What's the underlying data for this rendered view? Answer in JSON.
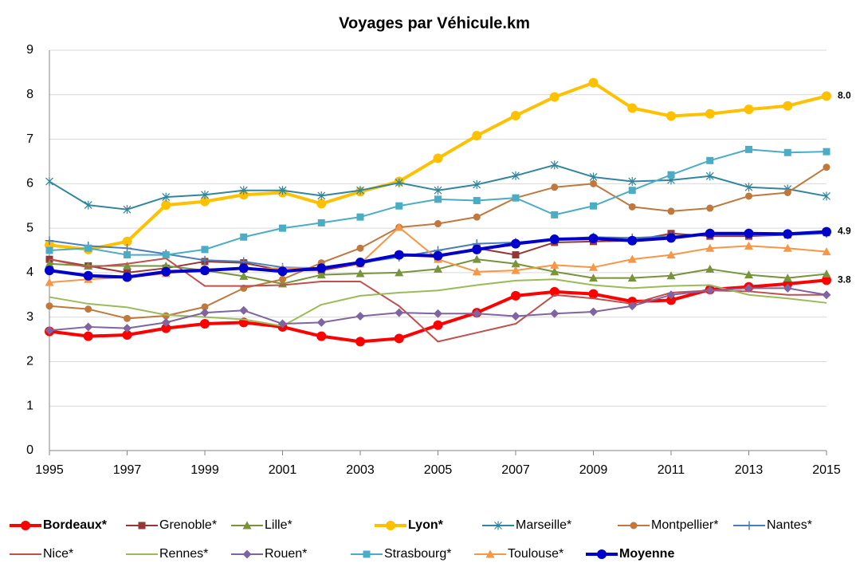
{
  "chart_data": {
    "type": "line",
    "title": "Voyages par Véhicule.km",
    "x": [
      1995,
      1996,
      1997,
      1998,
      1999,
      2000,
      2001,
      2002,
      2003,
      2004,
      2005,
      2006,
      2007,
      2008,
      2009,
      2010,
      2011,
      2012,
      2013,
      2014,
      2015
    ],
    "xlim": [
      1995,
      2015
    ],
    "xticks": [
      1995,
      1997,
      1999,
      2001,
      2003,
      2005,
      2007,
      2009,
      2011,
      2013,
      2015
    ],
    "ylim": [
      0,
      9
    ],
    "yticks": [
      0,
      1,
      2,
      3,
      4,
      5,
      6,
      7,
      8,
      9
    ],
    "grid": true,
    "series": [
      {
        "name": "Bordeaux*",
        "color": "#ff0000",
        "marker": "circle",
        "bold": true,
        "values": [
          2.68,
          2.57,
          2.6,
          2.75,
          2.85,
          2.88,
          2.78,
          2.57,
          2.45,
          2.52,
          2.82,
          3.1,
          3.48,
          3.57,
          3.52,
          3.35,
          3.38,
          3.62,
          3.68,
          3.75,
          3.83
        ],
        "value_labels": [
          null,
          null,
          null,
          null,
          null,
          null,
          null,
          null,
          null,
          null,
          null,
          null,
          null,
          null,
          null,
          null,
          null,
          null,
          null,
          null,
          "3.8"
        ]
      },
      {
        "name": "Grenoble*",
        "color": "#953735",
        "marker": "square",
        "values": [
          4.3,
          4.15,
          4.0,
          4.1,
          4.25,
          4.22,
          4.05,
          4.05,
          4.2,
          4.4,
          4.35,
          4.55,
          4.4,
          4.68,
          4.7,
          4.72,
          4.88,
          4.82,
          4.82,
          4.85,
          4.9
        ]
      },
      {
        "name": "Lille*",
        "color": "#77933c",
        "marker": "triangle",
        "values": [
          4.2,
          4.15,
          4.15,
          4.15,
          4.05,
          3.92,
          3.75,
          3.95,
          3.98,
          4.0,
          4.08,
          4.3,
          4.2,
          4.02,
          3.88,
          3.88,
          3.93,
          4.08,
          3.95,
          3.88,
          3.97
        ]
      },
      {
        "name": "Lyon*",
        "color": "#ffc000",
        "marker": "circle",
        "bold": true,
        "label_color": "#000000",
        "values": [
          4.62,
          4.52,
          4.7,
          5.52,
          5.6,
          5.75,
          5.8,
          5.55,
          5.82,
          6.05,
          6.57,
          7.08,
          7.53,
          7.95,
          8.27,
          7.7,
          7.52,
          7.57,
          7.67,
          7.75,
          7.97
        ],
        "value_labels": [
          null,
          null,
          null,
          null,
          null,
          null,
          null,
          null,
          null,
          null,
          null,
          null,
          null,
          null,
          null,
          null,
          null,
          null,
          null,
          null,
          "8.0"
        ]
      },
      {
        "name": "Marseille*",
        "color": "#31859c",
        "marker": "star",
        "values": [
          6.05,
          5.52,
          5.42,
          5.7,
          5.75,
          5.85,
          5.85,
          5.73,
          5.85,
          6.02,
          5.85,
          5.98,
          6.18,
          6.42,
          6.15,
          6.05,
          6.08,
          6.17,
          5.92,
          5.88,
          5.72
        ]
      },
      {
        "name": "Montpellier*",
        "color": "#c0783c",
        "marker": "circle",
        "values": [
          3.25,
          3.18,
          2.97,
          3.03,
          3.23,
          3.65,
          3.85,
          4.22,
          4.55,
          5.02,
          5.1,
          5.25,
          5.68,
          5.92,
          6.0,
          5.48,
          5.38,
          5.45,
          5.72,
          5.8,
          6.37
        ]
      },
      {
        "name": "Nantes*",
        "color": "#4a7ebb",
        "marker": "plus",
        "values": [
          4.72,
          4.6,
          4.55,
          4.42,
          4.28,
          4.25,
          4.12,
          4.1,
          4.22,
          4.35,
          4.5,
          4.65,
          4.68,
          4.75,
          4.8,
          4.78,
          4.82,
          4.85,
          4.85,
          4.85,
          4.88
        ]
      },
      {
        "name": "Nice*",
        "color": "#c0504d",
        "marker": "none",
        "values": [
          4.3,
          4.12,
          4.2,
          4.32,
          3.7,
          3.7,
          3.72,
          3.8,
          3.8,
          3.25,
          2.45,
          2.65,
          2.85,
          3.5,
          3.42,
          3.3,
          3.55,
          3.6,
          3.58,
          3.5,
          3.5
        ]
      },
      {
        "name": "Rennes*",
        "color": "#9bbb59",
        "marker": "none",
        "values": [
          3.45,
          3.3,
          3.22,
          3.05,
          3.0,
          2.95,
          2.8,
          3.28,
          3.48,
          3.55,
          3.6,
          3.72,
          3.82,
          3.85,
          3.72,
          3.65,
          3.7,
          3.72,
          3.5,
          3.42,
          3.32
        ]
      },
      {
        "name": "Rouen*",
        "color": "#8064a2",
        "marker": "diamond",
        "values": [
          2.7,
          2.78,
          2.75,
          2.88,
          3.1,
          3.15,
          2.85,
          2.88,
          3.02,
          3.1,
          3.08,
          3.08,
          3.02,
          3.08,
          3.12,
          3.25,
          3.5,
          3.6,
          3.65,
          3.65,
          3.5
        ]
      },
      {
        "name": "Strasbourg*",
        "color": "#4bacc6",
        "marker": "square",
        "values": [
          4.5,
          4.55,
          4.4,
          4.4,
          4.52,
          4.8,
          5.0,
          5.12,
          5.25,
          5.5,
          5.65,
          5.62,
          5.68,
          5.3,
          5.5,
          5.85,
          6.2,
          6.52,
          6.77,
          6.7,
          6.72
        ]
      },
      {
        "name": "Toulouse*",
        "color": "#f79646",
        "marker": "triangle",
        "values": [
          3.78,
          3.85,
          3.9,
          3.98,
          4.08,
          4.08,
          4.1,
          4.1,
          4.2,
          5.02,
          4.3,
          4.02,
          4.05,
          4.17,
          4.12,
          4.3,
          4.4,
          4.55,
          4.6,
          4.55,
          4.47
        ]
      },
      {
        "name": "Moyenne",
        "color": "#0000cc",
        "marker": "circle",
        "bold": true,
        "values": [
          4.05,
          3.93,
          3.9,
          4.02,
          4.05,
          4.1,
          4.03,
          4.1,
          4.23,
          4.4,
          4.38,
          4.52,
          4.65,
          4.75,
          4.77,
          4.72,
          4.78,
          4.88,
          4.88,
          4.87,
          4.92
        ],
        "value_labels": [
          null,
          null,
          null,
          null,
          null,
          null,
          null,
          null,
          null,
          null,
          null,
          null,
          null,
          null,
          null,
          null,
          null,
          null,
          null,
          null,
          "4.9"
        ]
      }
    ]
  }
}
